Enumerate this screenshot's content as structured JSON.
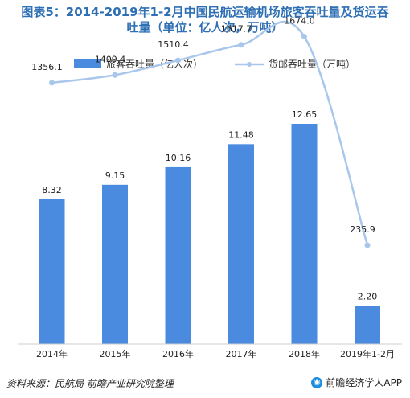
{
  "title_line1": "图表5：2014-2019年1-2月中国民航运输机场旅客吞吐量及货运吞",
  "title_line2": "吐量（单位：亿人次，万吨）",
  "source": "资料来源：民航局 前瞻产业研究院整理",
  "brand": "前瞻经济学人APP",
  "brand_icon": "eye-icon",
  "chart_data": {
    "type": "bar+line",
    "categories": [
      "2014年",
      "2015年",
      "2016年",
      "2017年",
      "2018年",
      "2019年1-2月"
    ],
    "series": [
      {
        "name": "旅客吞吐量（亿人次）",
        "type": "bar",
        "color": "#4a8be0",
        "values": [
          8.32,
          9.15,
          10.16,
          11.48,
          12.65,
          2.2
        ],
        "labels": [
          "8.32",
          "9.15",
          "10.16",
          "11.48",
          "12.65",
          "2.20"
        ]
      },
      {
        "name": "货邮吞吐量（万吨）",
        "type": "line",
        "color": "#a9c6ec",
        "values": [
          1356.1,
          1409.4,
          1510.4,
          1617.7,
          1674.0,
          235.9
        ],
        "labels": [
          "1356.1",
          "1409.4",
          "1510.4",
          "1617.7",
          "1674.0",
          "235.9"
        ]
      }
    ],
    "bar_axis_max": 16,
    "line_axis_range": [
      0,
      2000
    ],
    "legend_position": "top",
    "grid": false
  }
}
